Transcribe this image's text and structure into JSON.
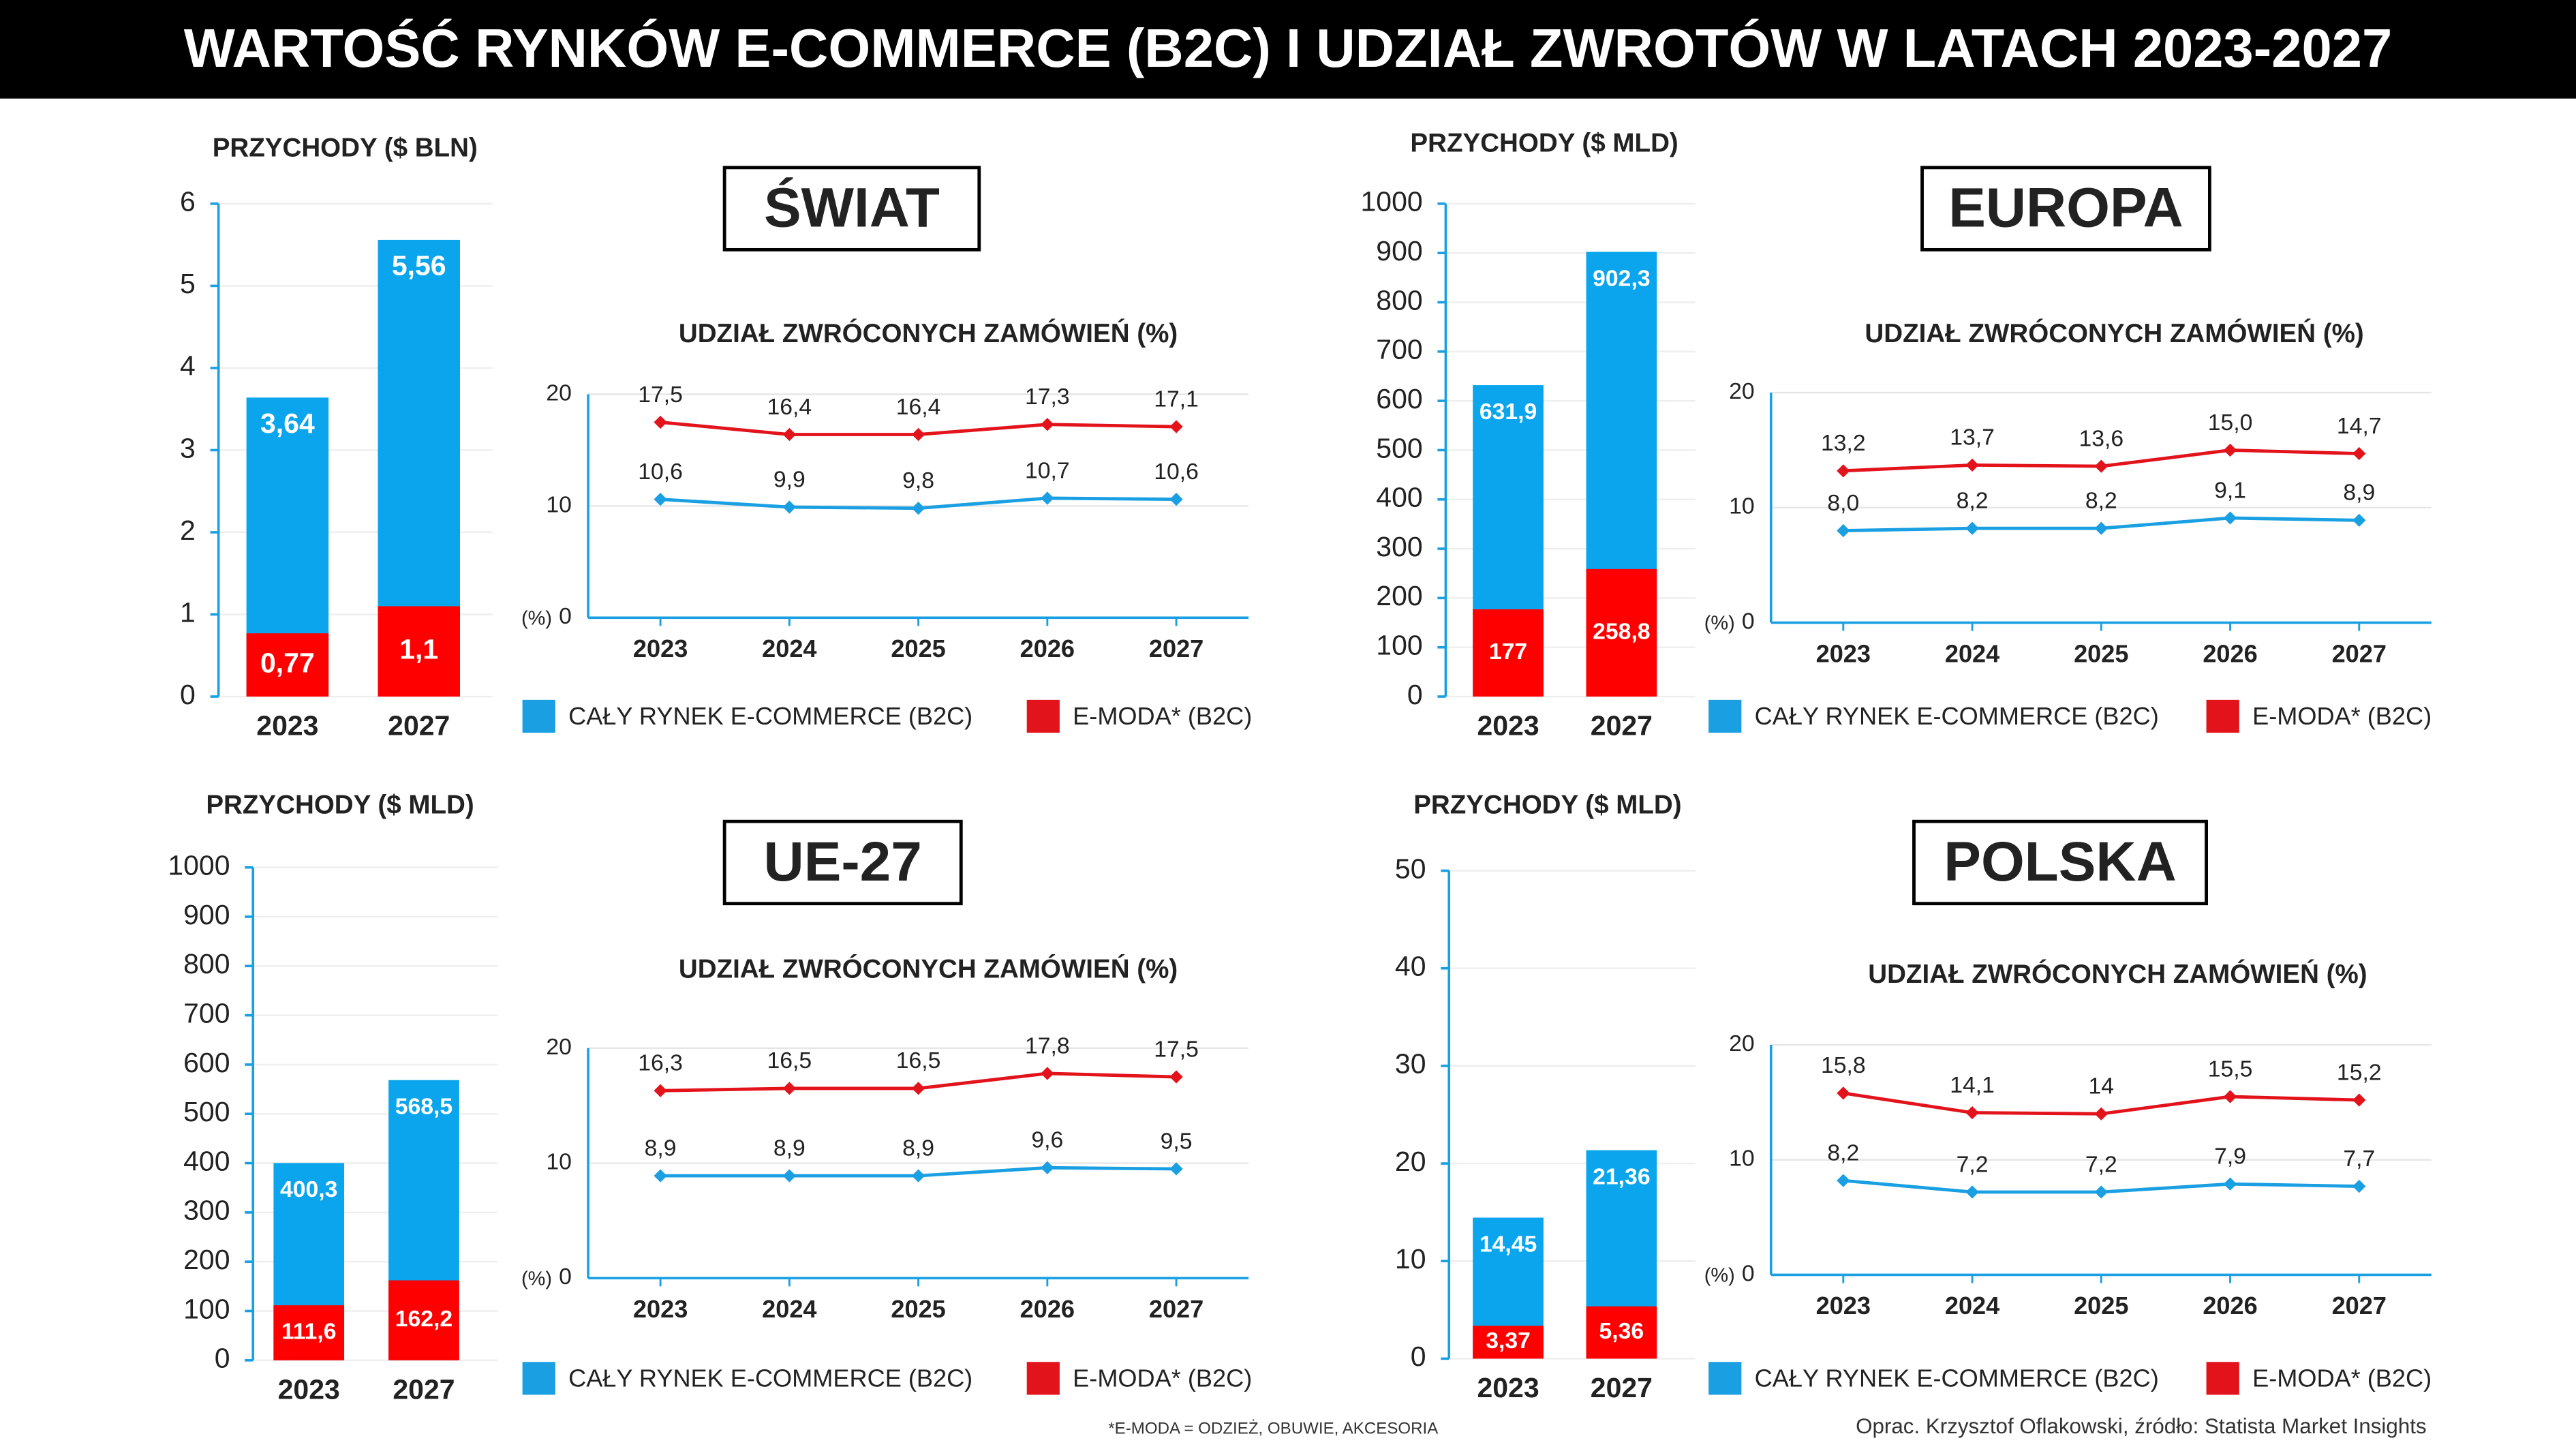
{
  "title": "WARTOŚĆ RYNKÓW E-COMMERCE (B2C) I UDZIAŁ ZWROTÓW W LATACH 2023-2027",
  "footnote": "*E-MODA = ODZIEŻ, OBUWIE, AKCESORIA",
  "source": "Oprac. Krzysztof Oflakowski, źródło: Statista Market Insights",
  "chart_data": [
    {
      "type": "bar",
      "panel_title": "ŚWIAT",
      "ylabel": "PRZYCHODY ($ BLN)",
      "categories": [
        "2023",
        "2027"
      ],
      "series": [
        {
          "color": "#0aa5ec",
          "values": [
            3.64,
            5.56
          ],
          "value_labels": [
            "3,64",
            "5,56"
          ]
        },
        {
          "color": "#ff0000",
          "values": [
            0.77,
            1.1
          ],
          "value_labels": [
            "0,77",
            "1,1"
          ]
        }
      ],
      "ylim": [
        0,
        6
      ],
      "yticks": [
        0,
        1,
        2,
        3,
        4,
        5,
        6
      ],
      "grid": true
    },
    {
      "type": "line",
      "title": "UDZIAŁ ZWRÓCONYCH ZAMÓWIEŃ (%)",
      "y_unit": "(%)",
      "categories": [
        "2023",
        "2024",
        "2025",
        "2026",
        "2027"
      ],
      "series": [
        {
          "name": "CAŁY RYNEK E-COMMERCE (B2C)",
          "color": "#1aa0e2",
          "values": [
            10.6,
            9.9,
            9.8,
            10.7,
            10.6
          ],
          "value_labels": [
            "10,6",
            "9,9",
            "9,8",
            "10,7",
            "10,6"
          ]
        },
        {
          "name": "E-MODA* (B2C)",
          "color": "#e3131b",
          "values": [
            17.5,
            16.4,
            16.4,
            17.3,
            17.1
          ],
          "value_labels": [
            "17,5",
            "16,4",
            "16,4",
            "17,3",
            "17,1"
          ]
        }
      ],
      "ylim": [
        0,
        20
      ],
      "yticks": [
        0,
        10,
        20
      ],
      "grid": true
    },
    {
      "type": "bar",
      "panel_title": "EUROPA",
      "ylabel": "PRZYCHODY ($ MLD)",
      "categories": [
        "2023",
        "2027"
      ],
      "series": [
        {
          "color": "#0aa5ec",
          "values": [
            631.9,
            902.3
          ],
          "value_labels": [
            "631,9",
            "902,3"
          ]
        },
        {
          "color": "#ff0000",
          "values": [
            177,
            258.8
          ],
          "value_labels": [
            "177",
            "258,8"
          ]
        }
      ],
      "ylim": [
        0,
        1000
      ],
      "yticks": [
        0,
        100,
        200,
        300,
        400,
        500,
        600,
        700,
        800,
        900,
        1000
      ],
      "grid": true
    },
    {
      "type": "line",
      "title": "UDZIAŁ ZWRÓCONYCH ZAMÓWIEŃ (%)",
      "y_unit": "(%)",
      "categories": [
        "2023",
        "2024",
        "2025",
        "2026",
        "2027"
      ],
      "series": [
        {
          "name": "CAŁY RYNEK E-COMMERCE (B2C)",
          "color": "#1aa0e2",
          "values": [
            8.0,
            8.2,
            8.2,
            9.1,
            8.9
          ],
          "value_labels": [
            "8,0",
            "8,2",
            "8,2",
            "9,1",
            "8,9"
          ]
        },
        {
          "name": "E-MODA* (B2C)",
          "color": "#e3131b",
          "values": [
            13.2,
            13.7,
            13.6,
            15.0,
            14.7
          ],
          "value_labels": [
            "13,2",
            "13,7",
            "13,6",
            "15,0",
            "14,7"
          ]
        }
      ],
      "ylim": [
        0,
        20
      ],
      "yticks": [
        0,
        10,
        20
      ],
      "grid": true
    },
    {
      "type": "bar",
      "panel_title": "UE-27",
      "ylabel": "PRZYCHODY ($ MLD)",
      "categories": [
        "2023",
        "2027"
      ],
      "series": [
        {
          "color": "#0aa5ec",
          "values": [
            400.3,
            568.5
          ],
          "value_labels": [
            "400,3",
            "568,5"
          ]
        },
        {
          "color": "#ff0000",
          "values": [
            111.6,
            162.2
          ],
          "value_labels": [
            "111,6",
            "162,2"
          ]
        }
      ],
      "ylim": [
        0,
        1000
      ],
      "yticks": [
        0,
        100,
        200,
        300,
        400,
        500,
        600,
        700,
        800,
        900,
        1000
      ],
      "grid": true
    },
    {
      "type": "line",
      "title": "UDZIAŁ ZWRÓCONYCH ZAMÓWIEŃ (%)",
      "y_unit": "(%)",
      "categories": [
        "2023",
        "2024",
        "2025",
        "2026",
        "2027"
      ],
      "series": [
        {
          "name": "CAŁY RYNEK E-COMMERCE (B2C)",
          "color": "#1aa0e2",
          "values": [
            8.9,
            8.9,
            8.9,
            9.6,
            9.5
          ],
          "value_labels": [
            "8,9",
            "8,9",
            "8,9",
            "9,6",
            "9,5"
          ]
        },
        {
          "name": "E-MODA* (B2C)",
          "color": "#e3131b",
          "values": [
            16.3,
            16.5,
            16.5,
            17.8,
            17.5
          ],
          "value_labels": [
            "16,3",
            "16,5",
            "16,5",
            "17,8",
            "17,5"
          ]
        }
      ],
      "ylim": [
        0,
        20
      ],
      "yticks": [
        0,
        10,
        20
      ],
      "grid": true
    },
    {
      "type": "bar",
      "panel_title": "POLSKA",
      "ylabel": "PRZYCHODY ($ MLD)",
      "categories": [
        "2023",
        "2027"
      ],
      "series": [
        {
          "color": "#0aa5ec",
          "values": [
            14.45,
            21.36
          ],
          "value_labels": [
            "14,45",
            "21,36"
          ]
        },
        {
          "color": "#ff0000",
          "values": [
            3.37,
            5.36
          ],
          "value_labels": [
            "3,37",
            "5,36"
          ]
        }
      ],
      "ylim": [
        0,
        50
      ],
      "yticks": [
        0,
        10,
        20,
        30,
        40,
        50
      ],
      "grid": true
    },
    {
      "type": "line",
      "title": "UDZIAŁ ZWRÓCONYCH ZAMÓWIEŃ (%)",
      "y_unit": "(%)",
      "categories": [
        "2023",
        "2024",
        "2025",
        "2026",
        "2027"
      ],
      "series": [
        {
          "name": "CAŁY RYNEK E-COMMERCE (B2C)",
          "color": "#1aa0e2",
          "values": [
            8.2,
            7.2,
            7.2,
            7.9,
            7.7
          ],
          "value_labels": [
            "8,2",
            "7,2",
            "7,2",
            "7,9",
            "7,7"
          ]
        },
        {
          "name": "E-MODA* (B2C)",
          "color": "#e3131b",
          "values": [
            15.8,
            14.1,
            14,
            15.5,
            15.2
          ],
          "value_labels": [
            "15,8",
            "14,1",
            "14",
            "15,5",
            "15,2"
          ]
        }
      ],
      "ylim": [
        0,
        20
      ],
      "yticks": [
        0,
        10,
        20
      ],
      "grid": true
    }
  ]
}
